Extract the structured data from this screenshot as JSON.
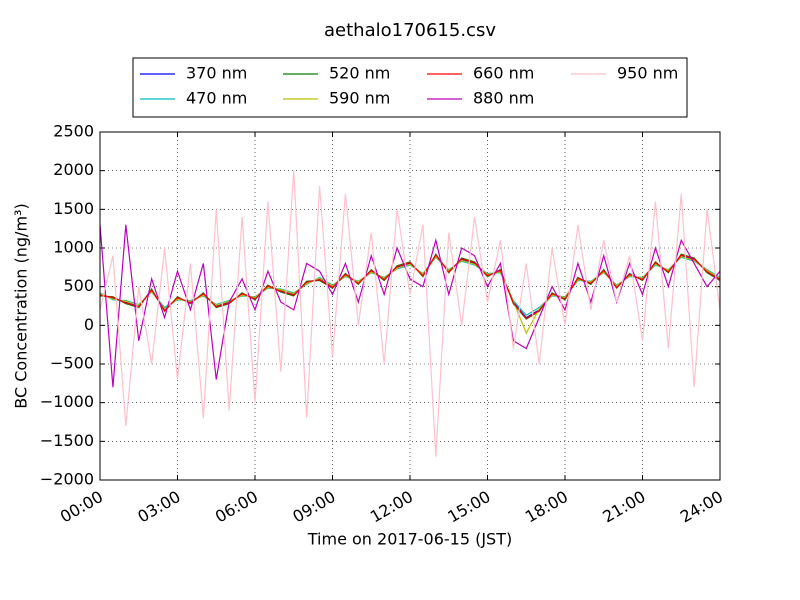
{
  "chart_data": {
    "type": "line",
    "title": "aethalo170615.csv",
    "xlabel": "Time on 2017-06-15 (JST)",
    "ylabel": "BC Concentration (ng/m³)",
    "x": [
      0,
      0.5,
      1,
      1.5,
      2,
      2.5,
      3,
      3.5,
      4,
      4.5,
      5,
      5.5,
      6,
      6.5,
      7,
      7.5,
      8,
      8.5,
      9,
      9.5,
      10,
      10.5,
      11,
      11.5,
      12,
      12.5,
      13,
      13.5,
      14,
      14.5,
      15,
      15.5,
      16,
      16.5,
      17,
      17.5,
      18,
      18.5,
      19,
      19.5,
      20,
      20.5,
      21,
      21.5,
      22,
      22.5,
      23,
      23.5,
      24
    ],
    "xlim": [
      0,
      24
    ],
    "xticks": [
      {
        "value": 0,
        "label": "00:00"
      },
      {
        "value": 3,
        "label": "03:00"
      },
      {
        "value": 6,
        "label": "06:00"
      },
      {
        "value": 9,
        "label": "09:00"
      },
      {
        "value": 12,
        "label": "12:00"
      },
      {
        "value": 15,
        "label": "15:00"
      },
      {
        "value": 18,
        "label": "18:00"
      },
      {
        "value": 21,
        "label": "21:00"
      },
      {
        "value": 24,
        "label": "24:00"
      }
    ],
    "ylim": [
      -2000,
      2500
    ],
    "yticks": [
      {
        "value": -2000,
        "label": "−2000"
      },
      {
        "value": -1500,
        "label": "−1500"
      },
      {
        "value": -1000,
        "label": "−1000"
      },
      {
        "value": -500,
        "label": "−500"
      },
      0,
      500,
      1000,
      1500,
      2000,
      2500
    ],
    "grid": true,
    "legend": "upper center",
    "series": [
      {
        "name": "370 nm",
        "color": "#0000ff",
        "values": [
          400,
          350,
          300,
          250,
          450,
          200,
          350,
          300,
          400,
          250,
          300,
          400,
          350,
          500,
          450,
          400,
          550,
          600,
          500,
          650,
          550,
          700,
          600,
          750,
          800,
          650,
          900,
          700,
          850,
          800,
          650,
          700,
          300,
          100,
          200,
          400,
          350,
          600,
          550,
          700,
          500,
          650,
          600,
          800,
          700,
          900,
          850,
          700,
          600
        ]
      },
      {
        "name": "470 nm",
        "color": "#00bfbf",
        "values": [
          420,
          330,
          320,
          270,
          430,
          230,
          330,
          320,
          380,
          270,
          320,
          380,
          370,
          480,
          470,
          420,
          530,
          620,
          520,
          630,
          570,
          680,
          620,
          730,
          780,
          670,
          880,
          720,
          830,
          780,
          670,
          680,
          320,
          130,
          230,
          380,
          370,
          580,
          570,
          680,
          520,
          630,
          620,
          780,
          720,
          880,
          830,
          720,
          620
        ]
      },
      {
        "name": "520 nm",
        "color": "#008000",
        "values": [
          380,
          370,
          280,
          230,
          470,
          180,
          370,
          280,
          420,
          230,
          280,
          420,
          330,
          520,
          430,
          380,
          570,
          580,
          480,
          670,
          530,
          720,
          580,
          770,
          820,
          630,
          920,
          680,
          870,
          820,
          630,
          720,
          280,
          80,
          180,
          420,
          330,
          620,
          530,
          720,
          480,
          670,
          580,
          820,
          680,
          920,
          870,
          680,
          580
        ]
      },
      {
        "name": "590 nm",
        "color": "#bfbf00",
        "values": [
          410,
          340,
          310,
          260,
          440,
          210,
          340,
          310,
          390,
          260,
          310,
          390,
          360,
          490,
          460,
          410,
          540,
          610,
          510,
          640,
          560,
          690,
          610,
          740,
          790,
          660,
          890,
          710,
          840,
          790,
          660,
          690,
          310,
          -100,
          210,
          390,
          360,
          590,
          560,
          690,
          510,
          640,
          610,
          790,
          710,
          890,
          840,
          710,
          610
        ]
      },
      {
        "name": "660 nm",
        "color": "#ff0000",
        "values": [
          390,
          360,
          290,
          240,
          460,
          190,
          360,
          290,
          410,
          240,
          290,
          410,
          340,
          510,
          440,
          390,
          560,
          590,
          490,
          660,
          540,
          710,
          590,
          760,
          810,
          640,
          910,
          690,
          860,
          810,
          640,
          710,
          290,
          90,
          190,
          410,
          340,
          610,
          540,
          710,
          490,
          660,
          590,
          810,
          690,
          910,
          860,
          690,
          590
        ]
      },
      {
        "name": "880 nm",
        "color": "#bf00bf",
        "values": [
          1300,
          -800,
          1300,
          -200,
          600,
          100,
          700,
          200,
          800,
          -700,
          300,
          600,
          200,
          700,
          300,
          200,
          800,
          700,
          400,
          800,
          300,
          900,
          400,
          1000,
          600,
          500,
          1100,
          400,
          1000,
          900,
          500,
          800,
          -200,
          -300,
          100,
          500,
          200,
          800,
          300,
          900,
          300,
          800,
          400,
          1000,
          500,
          1100,
          800,
          500,
          700
        ]
      },
      {
        "name": "950 nm",
        "color": "#ffc0cb",
        "values": [
          200,
          900,
          -1300,
          500,
          -500,
          1000,
          -700,
          800,
          -1200,
          1500,
          -1100,
          1400,
          -1000,
          1600,
          -600,
          2000,
          -1200,
          1800,
          -400,
          1700,
          0,
          1200,
          -500,
          1500,
          400,
          1300,
          -1700,
          1200,
          0,
          1400,
          300,
          1100,
          -300,
          800,
          -500,
          1000,
          0,
          1300,
          200,
          1100,
          300,
          900,
          -200,
          1600,
          -300,
          1700,
          -800,
          1500,
          200
        ]
      }
    ]
  }
}
